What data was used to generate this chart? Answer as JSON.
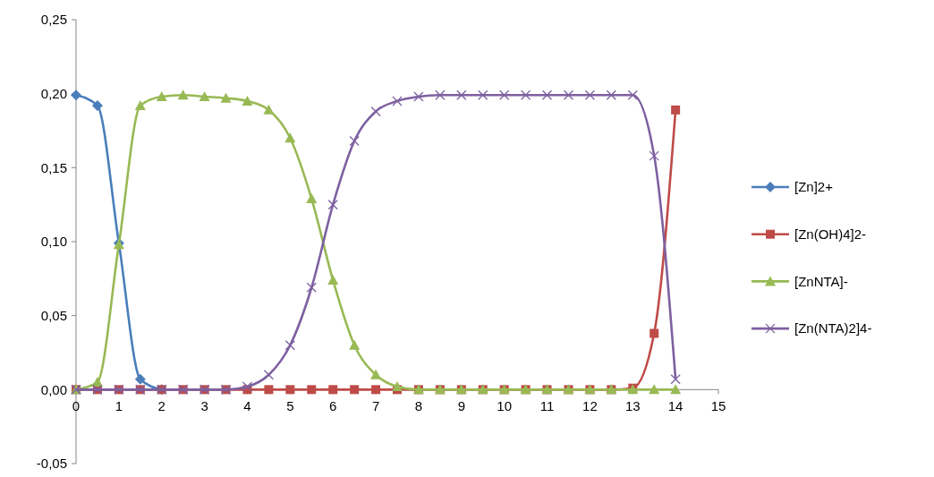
{
  "chart_data": {
    "type": "line",
    "x": [
      0,
      0.5,
      1,
      1.5,
      2,
      2.5,
      3,
      3.5,
      4,
      4.5,
      5,
      5.5,
      6,
      6.5,
      7,
      7.5,
      8,
      8.5,
      9,
      9.5,
      10,
      10.5,
      11,
      11.5,
      12,
      12.5,
      13,
      13.5,
      14
    ],
    "series": [
      {
        "name": "[Zn]2+",
        "color": "#4a7ebb",
        "marker": "diamond",
        "values": [
          0.199,
          0.192,
          0.099,
          0.007,
          0,
          null,
          null,
          null,
          null,
          null,
          null,
          null,
          null,
          null,
          null,
          null,
          null,
          null,
          null,
          null,
          null,
          null,
          null,
          null,
          null,
          null,
          null,
          null,
          null
        ]
      },
      {
        "name": "[Zn(OH)4]2-",
        "color": "#be4b48",
        "marker": "square",
        "values": [
          0,
          0,
          0,
          0,
          0,
          0,
          0,
          0,
          0,
          0,
          0,
          0,
          0,
          0,
          0,
          0,
          0,
          0,
          0,
          0,
          0,
          0,
          0,
          0,
          0,
          0,
          0.001,
          0.038,
          0.189
        ]
      },
      {
        "name": "[ZnNTA]-",
        "color": "#98b954",
        "marker": "triangle",
        "values": [
          0,
          0.005,
          0.098,
          0.192,
          0.198,
          0.199,
          0.198,
          0.197,
          0.195,
          0.189,
          0.17,
          0.129,
          0.074,
          0.03,
          0.01,
          0.002,
          0,
          0,
          0,
          0,
          0,
          0,
          0,
          0,
          0,
          0,
          0,
          0,
          0
        ]
      },
      {
        "name": "[Zn(NTA)2]4-",
        "color": "#7d60a0",
        "marker": "cross",
        "values": [
          0,
          0,
          0,
          0,
          0,
          0,
          0,
          0,
          0.002,
          0.01,
          0.03,
          0.069,
          0.125,
          0.168,
          0.188,
          0.195,
          0.198,
          0.199,
          0.199,
          0.199,
          0.199,
          0.199,
          0.199,
          0.199,
          0.199,
          0.199,
          0.199,
          0.158,
          0.007
        ]
      }
    ],
    "xlim": [
      0,
      15
    ],
    "xticks": [
      0,
      1,
      2,
      3,
      4,
      5,
      6,
      7,
      8,
      9,
      10,
      11,
      12,
      13,
      14,
      15
    ],
    "ylim": [
      -0.05,
      0.25
    ],
    "yticks": [
      {
        "value": -0.05,
        "label": "-0,05"
      },
      {
        "value": 0,
        "label": "0,00"
      },
      {
        "value": 0.05,
        "label": "0,05"
      },
      {
        "value": 0.1,
        "label": "0,10"
      },
      {
        "value": 0.15,
        "label": "0,15"
      },
      {
        "value": 0.2,
        "label": "0,20"
      },
      {
        "value": 0.25,
        "label": "0,25"
      }
    ],
    "grid": false,
    "legend": "right",
    "line_style": "solid"
  }
}
